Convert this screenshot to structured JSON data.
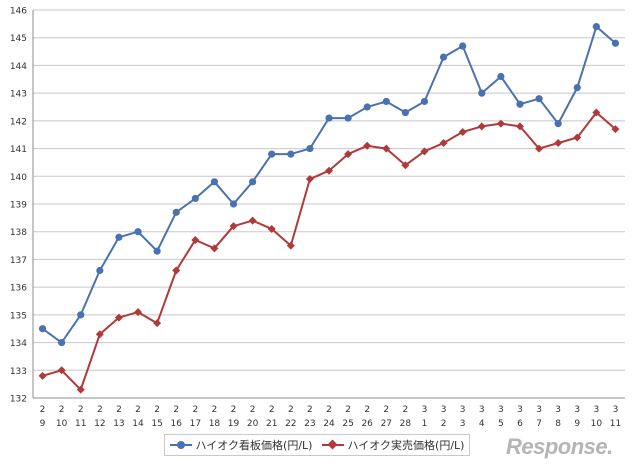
{
  "chart_data": {
    "type": "line",
    "ylim": [
      132,
      146
    ],
    "yticks": [
      132,
      133,
      134,
      135,
      136,
      137,
      138,
      139,
      140,
      141,
      142,
      143,
      144,
      145,
      146
    ],
    "grid": true,
    "legend_position": "bottom",
    "categories": [
      {
        "month": "2",
        "day": "9"
      },
      {
        "month": "2",
        "day": "10"
      },
      {
        "month": "2",
        "day": "11"
      },
      {
        "month": "2",
        "day": "12"
      },
      {
        "month": "2",
        "day": "13"
      },
      {
        "month": "2",
        "day": "14"
      },
      {
        "month": "2",
        "day": "15"
      },
      {
        "month": "2",
        "day": "16"
      },
      {
        "month": "2",
        "day": "17"
      },
      {
        "month": "2",
        "day": "18"
      },
      {
        "month": "2",
        "day": "19"
      },
      {
        "month": "2",
        "day": "20"
      },
      {
        "month": "2",
        "day": "21"
      },
      {
        "month": "2",
        "day": "22"
      },
      {
        "month": "2",
        "day": "23"
      },
      {
        "month": "2",
        "day": "24"
      },
      {
        "month": "2",
        "day": "25"
      },
      {
        "month": "2",
        "day": "26"
      },
      {
        "month": "2",
        "day": "27"
      },
      {
        "month": "2",
        "day": "28"
      },
      {
        "month": "3",
        "day": "1"
      },
      {
        "month": "3",
        "day": "2"
      },
      {
        "month": "3",
        "day": "3"
      },
      {
        "month": "3",
        "day": "4"
      },
      {
        "month": "3",
        "day": "5"
      },
      {
        "month": "3",
        "day": "6"
      },
      {
        "month": "3",
        "day": "7"
      },
      {
        "month": "3",
        "day": "8"
      },
      {
        "month": "3",
        "day": "9"
      },
      {
        "month": "3",
        "day": "10"
      },
      {
        "month": "3",
        "day": "11"
      }
    ],
    "series": [
      {
        "name": "ハイオク看板価格(円/L)",
        "color": "#4a72b0",
        "marker": "circle",
        "values": [
          134.5,
          134.0,
          135.0,
          136.6,
          137.8,
          138.0,
          137.3,
          138.7,
          139.2,
          139.8,
          139.0,
          139.8,
          140.8,
          140.8,
          141.0,
          142.1,
          142.1,
          142.5,
          142.7,
          142.3,
          142.7,
          144.3,
          144.7,
          143.0,
          143.6,
          142.6,
          142.8,
          141.9,
          143.2,
          145.4,
          144.8
        ]
      },
      {
        "name": "ハイオク実売価格(円/L)",
        "color": "#b0393a",
        "marker": "diamond",
        "values": [
          132.8,
          133.0,
          132.3,
          134.3,
          134.9,
          135.1,
          134.7,
          136.6,
          137.7,
          137.4,
          138.2,
          138.4,
          138.1,
          137.5,
          139.9,
          140.2,
          140.8,
          141.1,
          141.0,
          140.4,
          140.9,
          141.2,
          141.6,
          141.8,
          141.9,
          141.8,
          141.0,
          141.2,
          141.4,
          142.3,
          141.7
        ]
      }
    ]
  },
  "watermark": "Response."
}
